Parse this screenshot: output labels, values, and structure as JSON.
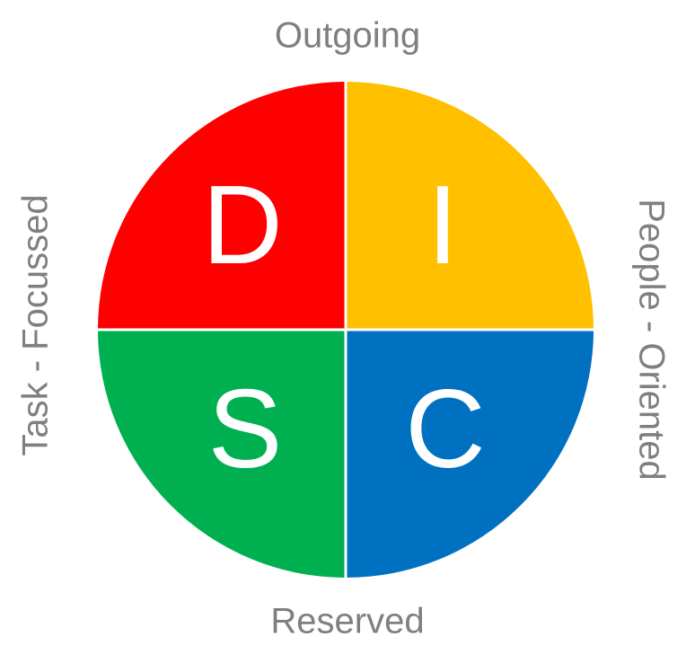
{
  "axes": {
    "top": "Outgoing",
    "bottom": "Reserved",
    "left": "Task - Focussed",
    "right": "People - Oriented"
  },
  "quadrants": [
    {
      "id": "d",
      "letter": "D",
      "position": "top-left",
      "color": "#ff0000"
    },
    {
      "id": "i",
      "letter": "I",
      "position": "top-right",
      "color": "#ffc000"
    },
    {
      "id": "s",
      "letter": "S",
      "position": "bottom-left",
      "color": "#00b050"
    },
    {
      "id": "c",
      "letter": "C",
      "position": "bottom-right",
      "color": "#0070c0"
    }
  ],
  "colors": {
    "label_text": "#7f7f7f",
    "letter_text": "#ffffff",
    "divider": "#ffffff"
  }
}
